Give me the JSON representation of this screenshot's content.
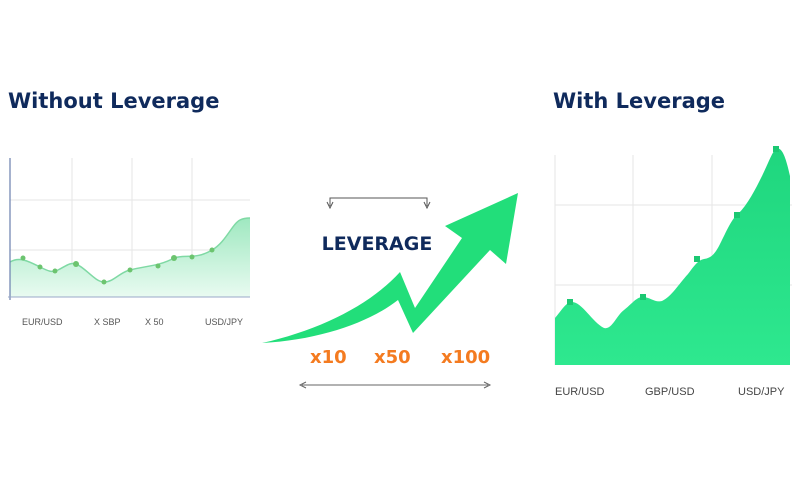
{
  "left_panel": {
    "title": "Without Leverage",
    "labels": [
      "EUR/USD",
      "X SBP",
      "X 50",
      "USD/JPY"
    ]
  },
  "center": {
    "label": "LEVERAGE",
    "multipliers": [
      "x10",
      "x50",
      "x100"
    ]
  },
  "right_panel": {
    "title": "With Leverage",
    "labels": [
      "EUR/USD",
      "GBP/USD",
      "USD/JPY"
    ]
  }
}
